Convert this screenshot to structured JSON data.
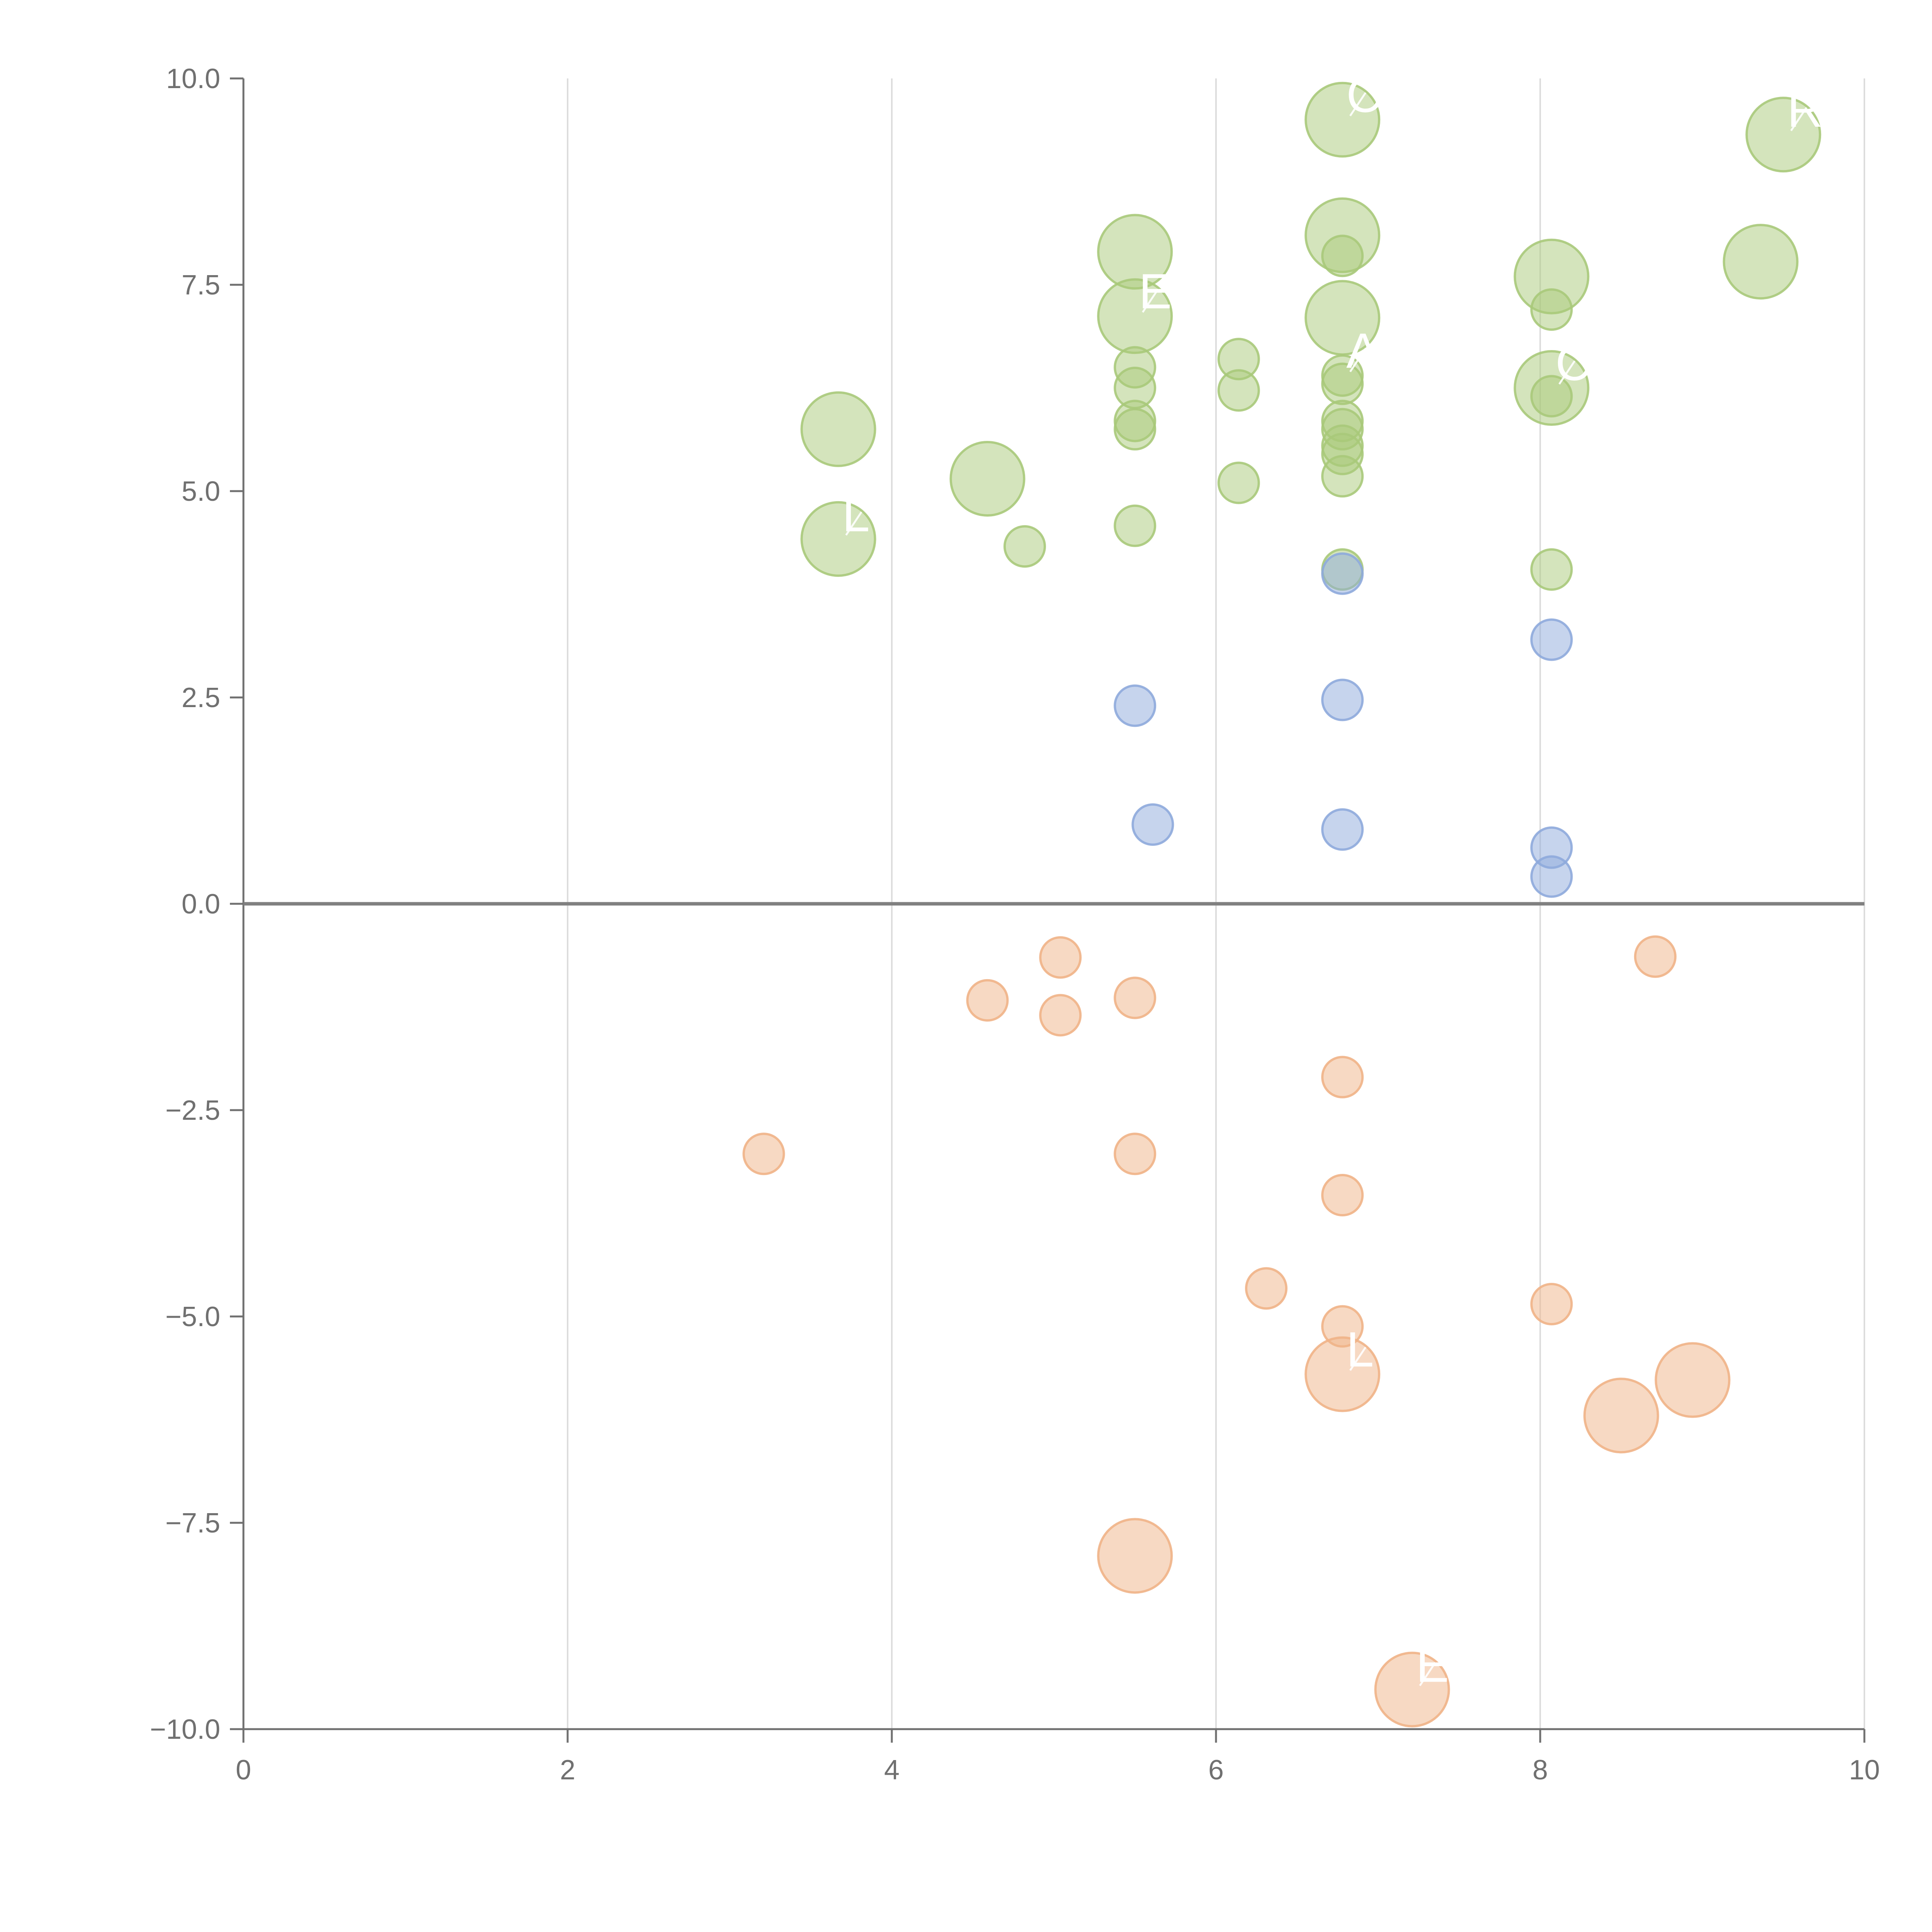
{
  "chart_data": {
    "type": "scatter",
    "title": "",
    "xlabel": "",
    "ylabel": "",
    "xlim": [
      0,
      10
    ],
    "ylim": [
      -10,
      10
    ],
    "grid": {
      "x": true,
      "y": false
    },
    "x_ticks": [
      0,
      2,
      4,
      6,
      8,
      10
    ],
    "x_tick_labels": [
      "0",
      "2",
      "4",
      "6",
      "8",
      "10"
    ],
    "y_ticks": [
      10,
      7.5,
      5,
      2.5,
      0,
      -2.5,
      -5,
      -7.5,
      -10
    ],
    "y_tick_labels": [
      "10.0",
      "7.5",
      "5.0",
      "2.5",
      "0.0",
      "−2.5",
      "−5.0",
      "−7.5",
      "−10.0"
    ],
    "reference_line": {
      "axis": "y",
      "value": 0
    },
    "series": [
      {
        "name": "green",
        "color": "#a9c97a",
        "points": [
          {
            "x": 6.78,
            "y": 9.5,
            "size": "large",
            "label": "CP"
          },
          {
            "x": 9.5,
            "y": 9.32,
            "size": "large",
            "label": "RE"
          },
          {
            "x": 5.5,
            "y": 7.9,
            "size": "large",
            "label": ""
          },
          {
            "x": 6.78,
            "y": 8.1,
            "size": "large",
            "label": ""
          },
          {
            "x": 6.78,
            "y": 7.85,
            "size": "small",
            "label": ""
          },
          {
            "x": 8.07,
            "y": 7.6,
            "size": "large",
            "label": ""
          },
          {
            "x": 9.36,
            "y": 7.78,
            "size": "large",
            "label": ""
          },
          {
            "x": 5.5,
            "y": 7.12,
            "size": "large",
            "label": "EJ"
          },
          {
            "x": 6.78,
            "y": 7.1,
            "size": "large",
            "label": ""
          },
          {
            "x": 8.07,
            "y": 7.2,
            "size": "small",
            "label": ""
          },
          {
            "x": 6.14,
            "y": 6.6,
            "size": "small",
            "label": ""
          },
          {
            "x": 5.5,
            "y": 6.5,
            "size": "small",
            "label": ""
          },
          {
            "x": 6.78,
            "y": 6.4,
            "size": "small",
            "label": "A"
          },
          {
            "x": 6.78,
            "y": 6.3,
            "size": "small",
            "label": ""
          },
          {
            "x": 5.5,
            "y": 6.25,
            "size": "small",
            "label": ""
          },
          {
            "x": 6.14,
            "y": 6.22,
            "size": "small",
            "label": ""
          },
          {
            "x": 8.07,
            "y": 6.25,
            "size": "large",
            "label": "C"
          },
          {
            "x": 8.07,
            "y": 6.15,
            "size": "small",
            "label": ""
          },
          {
            "x": 5.5,
            "y": 5.85,
            "size": "small",
            "label": ""
          },
          {
            "x": 6.78,
            "y": 5.85,
            "size": "small",
            "label": ""
          },
          {
            "x": 6.78,
            "y": 5.75,
            "size": "small",
            "label": ""
          },
          {
            "x": 5.5,
            "y": 5.75,
            "size": "small",
            "label": ""
          },
          {
            "x": 6.78,
            "y": 5.55,
            "size": "small",
            "label": ""
          },
          {
            "x": 6.78,
            "y": 5.45,
            "size": "small",
            "label": ""
          },
          {
            "x": 3.67,
            "y": 5.75,
            "size": "large",
            "label": ""
          },
          {
            "x": 4.59,
            "y": 5.15,
            "size": "large",
            "label": ""
          },
          {
            "x": 6.78,
            "y": 5.18,
            "size": "small",
            "label": ""
          },
          {
            "x": 6.14,
            "y": 5.1,
            "size": "small",
            "label": ""
          },
          {
            "x": 5.5,
            "y": 4.58,
            "size": "small",
            "label": ""
          },
          {
            "x": 3.67,
            "y": 4.42,
            "size": "large",
            "label": "L"
          },
          {
            "x": 4.82,
            "y": 4.33,
            "size": "small",
            "label": ""
          },
          {
            "x": 6.78,
            "y": 4.05,
            "size": "small",
            "label": ""
          },
          {
            "x": 8.07,
            "y": 4.05,
            "size": "small",
            "label": ""
          }
        ]
      },
      {
        "name": "blue",
        "color": "#8eaadb",
        "points": [
          {
            "x": 6.78,
            "y": 4.0,
            "size": "small",
            "label": ""
          },
          {
            "x": 8.07,
            "y": 3.2,
            "size": "small",
            "label": ""
          },
          {
            "x": 6.78,
            "y": 2.47,
            "size": "small",
            "label": ""
          },
          {
            "x": 5.5,
            "y": 2.4,
            "size": "small",
            "label": ""
          },
          {
            "x": 5.61,
            "y": 0.96,
            "size": "small",
            "label": ""
          },
          {
            "x": 6.78,
            "y": 0.9,
            "size": "small",
            "label": ""
          },
          {
            "x": 8.07,
            "y": 0.68,
            "size": "small",
            "label": ""
          },
          {
            "x": 8.07,
            "y": 0.33,
            "size": "small",
            "label": ""
          }
        ]
      },
      {
        "name": "orange",
        "color": "#f0b387",
        "points": [
          {
            "x": 5.04,
            "y": -0.65,
            "size": "small",
            "label": ""
          },
          {
            "x": 8.71,
            "y": -0.64,
            "size": "small",
            "label": ""
          },
          {
            "x": 4.59,
            "y": -1.17,
            "size": "small",
            "label": ""
          },
          {
            "x": 5.5,
            "y": -1.14,
            "size": "small",
            "label": ""
          },
          {
            "x": 5.04,
            "y": -1.35,
            "size": "small",
            "label": ""
          },
          {
            "x": 6.78,
            "y": -2.1,
            "size": "small",
            "label": ""
          },
          {
            "x": 3.21,
            "y": -3.03,
            "size": "small",
            "label": ""
          },
          {
            "x": 5.5,
            "y": -3.03,
            "size": "small",
            "label": ""
          },
          {
            "x": 6.78,
            "y": -3.53,
            "size": "small",
            "label": ""
          },
          {
            "x": 6.31,
            "y": -4.66,
            "size": "small",
            "label": ""
          },
          {
            "x": 8.07,
            "y": -4.85,
            "size": "small",
            "label": ""
          },
          {
            "x": 6.78,
            "y": -5.12,
            "size": "small",
            "label": ""
          },
          {
            "x": 6.78,
            "y": -5.7,
            "size": "large",
            "label": "L"
          },
          {
            "x": 8.94,
            "y": -5.77,
            "size": "large",
            "label": ""
          },
          {
            "x": 8.5,
            "y": -6.2,
            "size": "large",
            "label": ""
          },
          {
            "x": 5.5,
            "y": -7.9,
            "size": "large",
            "label": ""
          },
          {
            "x": 7.21,
            "y": -9.52,
            "size": "large",
            "label": "E"
          }
        ]
      }
    ]
  }
}
